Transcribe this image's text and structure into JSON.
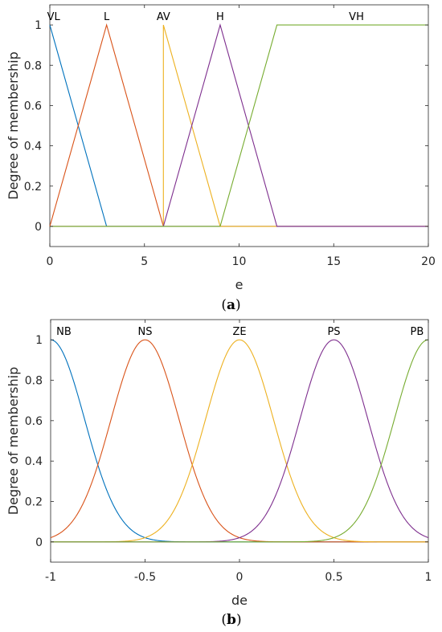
{
  "chart_data": [
    {
      "type": "line",
      "caption": {
        "open": "(",
        "letter": "a",
        "close": ")"
      },
      "xlabel": "e",
      "ylabel": "Degree of membership",
      "xlim": [
        0,
        20
      ],
      "ylim": [
        -0.1,
        1.1
      ],
      "xticks": [
        0,
        5,
        10,
        15,
        20
      ],
      "yticks": [
        0,
        0.2,
        0.4,
        0.6,
        0.8,
        1
      ],
      "grid": false,
      "series": [
        {
          "name": "VL",
          "color": "#0072BD",
          "kind": "polyline",
          "points": [
            [
              0,
              1
            ],
            [
              3,
              0
            ],
            [
              20,
              0
            ]
          ],
          "label_at": [
            0.2,
            1.045
          ]
        },
        {
          "name": "L",
          "color": "#D95319",
          "kind": "polyline",
          "points": [
            [
              0,
              0
            ],
            [
              3,
              1
            ],
            [
              6,
              0
            ],
            [
              20,
              0
            ]
          ],
          "label_at": [
            3,
            1.045
          ]
        },
        {
          "name": "AV",
          "color": "#EDB120",
          "kind": "polyline",
          "points": [
            [
              0,
              0
            ],
            [
              6,
              0
            ],
            [
              6,
              0
            ],
            [
              6,
              1
            ],
            [
              9,
              0
            ],
            [
              20,
              0
            ]
          ],
          "label_at": [
            6,
            1.045
          ]
        },
        {
          "name": "H",
          "color": "#7E2F8E",
          "kind": "polyline",
          "points": [
            [
              0,
              0
            ],
            [
              6,
              0
            ],
            [
              9,
              1
            ],
            [
              12,
              0
            ],
            [
              20,
              0
            ]
          ],
          "label_at": [
            9,
            1.045
          ]
        },
        {
          "name": "VH",
          "color": "#77AC30",
          "kind": "polyline",
          "points": [
            [
              0,
              0
            ],
            [
              9,
              0
            ],
            [
              12,
              1
            ],
            [
              20,
              1
            ]
          ],
          "label_at": [
            16.2,
            1.045
          ]
        }
      ]
    },
    {
      "type": "line",
      "caption": {
        "open": "(",
        "letter": "b",
        "close": ")"
      },
      "xlabel": "de",
      "ylabel": "Degree of membership",
      "xlim": [
        -1,
        1
      ],
      "ylim": [
        -0.1,
        1.1
      ],
      "xticks": [
        -1,
        -0.5,
        0,
        0.5,
        1
      ],
      "yticks": [
        0,
        0.2,
        0.4,
        0.6,
        0.8,
        1
      ],
      "grid": false,
      "series": [
        {
          "name": "NB",
          "color": "#0072BD",
          "kind": "gauss",
          "center": -1,
          "sigma": 0.18,
          "label_at": [
            -0.93,
            1.045
          ]
        },
        {
          "name": "NS",
          "color": "#D95319",
          "kind": "gauss",
          "center": -0.5,
          "sigma": 0.18,
          "label_at": [
            -0.5,
            1.045
          ]
        },
        {
          "name": "ZE",
          "color": "#EDB120",
          "kind": "gauss",
          "center": 0,
          "sigma": 0.18,
          "label_at": [
            0,
            1.045
          ]
        },
        {
          "name": "PS",
          "color": "#7E2F8E",
          "kind": "gauss",
          "center": 0.5,
          "sigma": 0.18,
          "label_at": [
            0.5,
            1.045
          ]
        },
        {
          "name": "PB",
          "color": "#77AC30",
          "kind": "gauss",
          "center": 1,
          "sigma": 0.18,
          "label_at": [
            0.94,
            1.045
          ]
        }
      ]
    }
  ]
}
